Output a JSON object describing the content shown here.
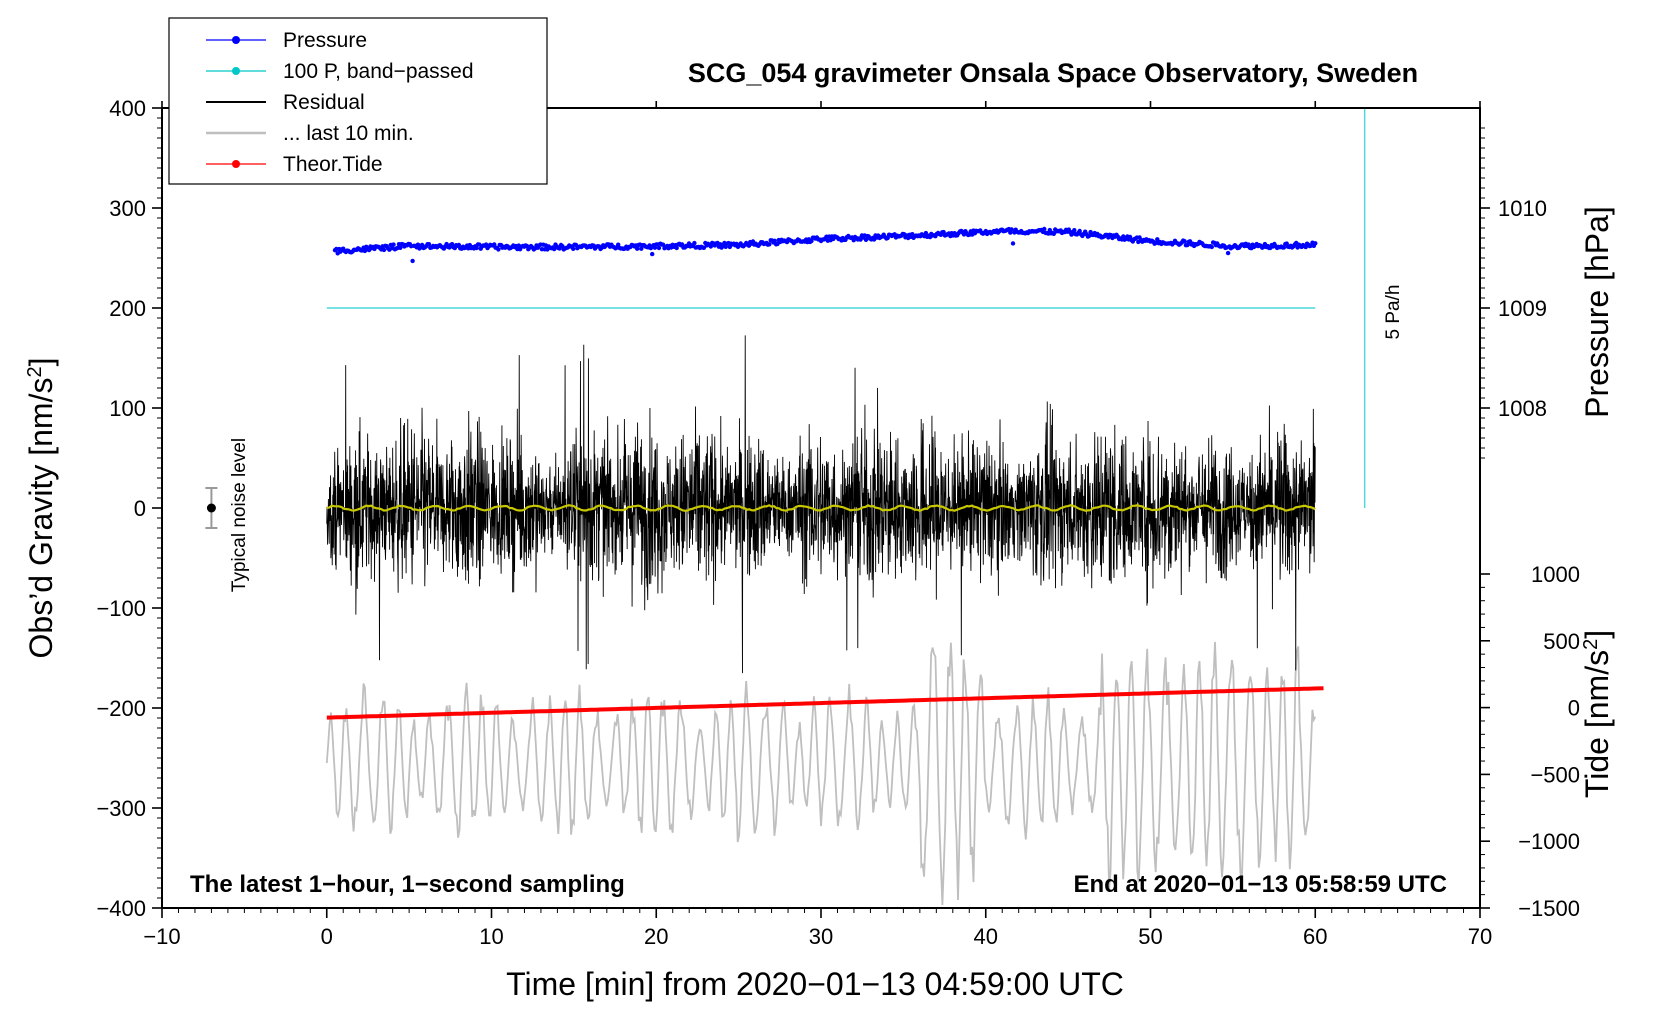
{
  "chart_data": {
    "type": "line",
    "title": "SCG_054 gravimeter Onsala Space Observatory, Sweden",
    "xlabel": "Time [min] from 2020−01−13 04:59:00 UTC",
    "ylabel_left": "Obs’d Gravity [nm/s",
    "ylabel_left_sup": "2",
    "ylabel_left_close": "]",
    "ylabel_right_pressure": "Pressure [hPa]",
    "ylabel_right_tide": "Tide [nm/s",
    "ylabel_right_tide_sup": "2",
    "ylabel_right_tide_close": "]",
    "xlim": [
      -10,
      70
    ],
    "ylim": [
      -400,
      400
    ],
    "x_ticks": [
      -10,
      0,
      10,
      20,
      30,
      40,
      50,
      60,
      70
    ],
    "x_tick_labels": [
      "−10",
      "0",
      "10",
      "20",
      "30",
      "40",
      "50",
      "60",
      "70"
    ],
    "y_ticks": [
      -400,
      -300,
      -200,
      -100,
      0,
      100,
      200,
      300,
      400
    ],
    "y_tick_labels": [
      "−400",
      "−300",
      "−200",
      "−100",
      "0",
      "100",
      "200",
      "300",
      "400"
    ],
    "pressure_axis": {
      "ticks": [
        1008,
        1009,
        1010
      ],
      "tick_labels": [
        "1008",
        "1009",
        "1010"
      ],
      "units_per_hPa": 100,
      "ref_hpa": 1009,
      "ref_gravity": 200
    },
    "tide_axis": {
      "ticks": [
        -1500,
        -1000,
        -500,
        0,
        500,
        1000
      ],
      "tick_labels": [
        "−1500",
        "−1000",
        "−500",
        "0",
        "500",
        "1000"
      ],
      "tide_min": -1500,
      "tide_max": 1000,
      "grav_min": -400,
      "grav_max": -66
    },
    "legend": {
      "position": "top-left",
      "entries": [
        {
          "label": "Pressure",
          "color": "#0000ff",
          "marker": true
        },
        {
          "label": "100 P, band−passed",
          "color": "#00c8c8",
          "marker": true
        },
        {
          "label": "Residual",
          "color": "#000000",
          "marker": false
        },
        {
          "label": "... last 10 min.",
          "color": "#bfbfbf",
          "marker": false
        },
        {
          "label": "Theor.Tide",
          "color": "#ff0000",
          "marker": true
        }
      ]
    },
    "annotations": {
      "noise_label": "Typical noise level",
      "noise_bar": {
        "x": -7,
        "y": 0,
        "half_range": 20
      },
      "rate_label": "5 Pa/h",
      "rate_bar": {
        "x": 63,
        "y_from": 0,
        "y_to": 400
      },
      "bottom_left": "The latest 1−hour, 1−second sampling",
      "bottom_right": "End at 2020−01−13 05:58:59 UTC"
    },
    "series": [
      {
        "name": "Pressure",
        "axis": "pressure",
        "color": "#0000ff",
        "x": [
          0.5,
          5,
          10,
          15,
          20,
          25,
          30,
          35,
          40,
          42,
          45,
          50,
          55,
          60
        ],
        "values": [
          1009.57,
          1009.62,
          1009.61,
          1009.61,
          1009.62,
          1009.63,
          1009.69,
          1009.72,
          1009.76,
          1009.77,
          1009.76,
          1009.67,
          1009.62,
          1009.63
        ]
      },
      {
        "name": "100 P, band−passed",
        "axis": "gravity",
        "color": "#00c8c8",
        "x": [
          0,
          60
        ],
        "values": [
          200,
          200
        ]
      },
      {
        "name": "Residual",
        "axis": "gravity",
        "color": "#000000",
        "x": [
          0,
          60
        ],
        "amplitude_typical": 75,
        "amplitude_max": 175,
        "mean": 0
      },
      {
        "name": "Residual smoothed",
        "axis": "gravity",
        "color": "#c8c800",
        "x": [
          0,
          60
        ],
        "values": [
          0,
          0
        ]
      },
      {
        "name": "... last 10 min.",
        "axis": "gravity",
        "color": "#bfbfbf",
        "x": [
          0,
          60
        ],
        "center": -255,
        "amplitude_typical": 60,
        "amplitude_max": 200
      },
      {
        "name": "Theor.Tide",
        "axis": "tide",
        "color": "#ff0000",
        "x": [
          0,
          60.5
        ],
        "values": [
          -75,
          145
        ]
      }
    ]
  }
}
